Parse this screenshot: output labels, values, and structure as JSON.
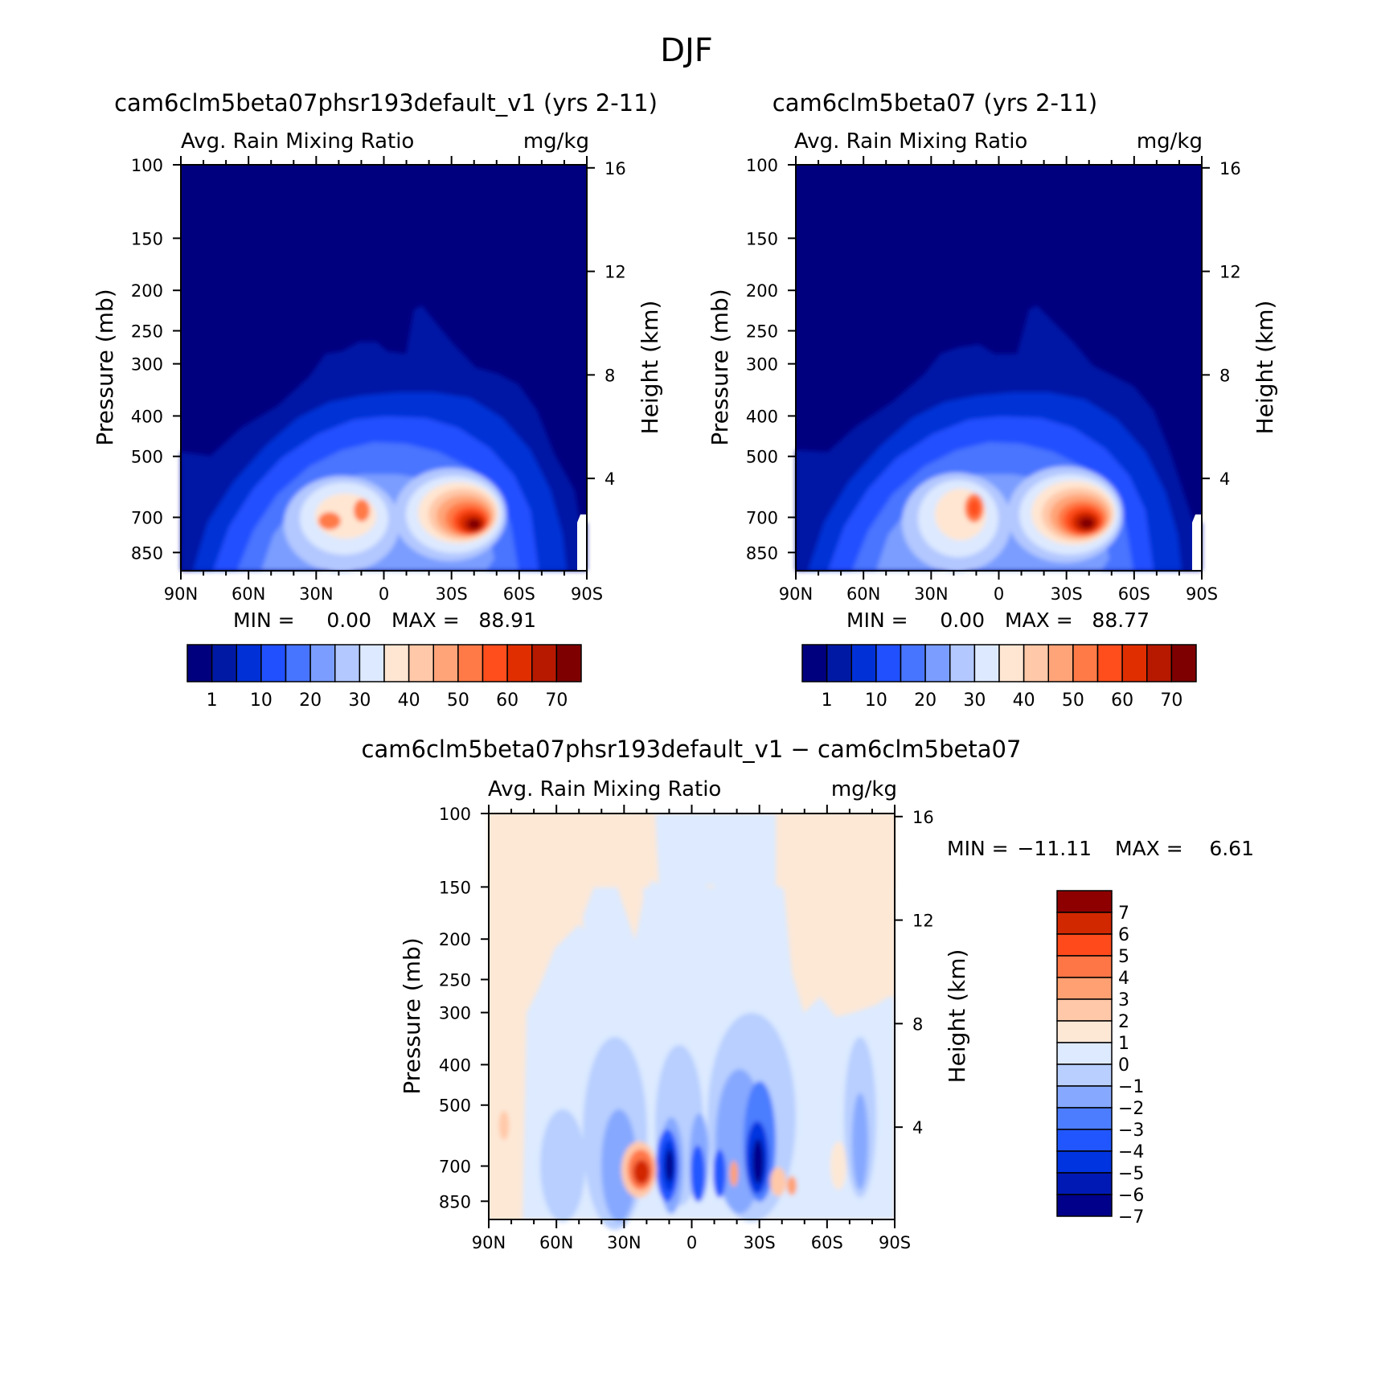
{
  "figure": {
    "title": "DJF"
  },
  "colors": {
    "abs_levels": [
      "#00007f",
      "#0019a5",
      "#0030d6",
      "#2150ff",
      "#4875ff",
      "#7a9dff",
      "#b3c8ff",
      "#dde9ff",
      "#ffe6d2",
      "#ffc8a8",
      "#ffa478",
      "#ff7a46",
      "#ff4e1c",
      "#e02e00",
      "#b61900",
      "#7f0000"
    ],
    "diff_levels": [
      "#00008a",
      "#0019b4",
      "#0034e0",
      "#2156ff",
      "#4c7dff",
      "#86a8ff",
      "#b8cfff",
      "#ddeaff",
      "#fde8d6",
      "#ffc8a8",
      "#ffa072",
      "#ff7646",
      "#ff4b1c",
      "#d12800",
      "#8e0000"
    ]
  },
  "chart_data": [
    {
      "type": "contour",
      "title": "cam6clm5beta07phsr193default_v1 (yrs 2-11)",
      "subtitle_left": "Avg. Rain Mixing Ratio",
      "subtitle_right": "mg/kg",
      "xlabel": "",
      "ylabel": "Pressure (mb)",
      "ylabel_right": "Height (km)",
      "x_ticks": [
        "90N",
        "60N",
        "30N",
        "0",
        "30S",
        "60S",
        "90S"
      ],
      "y_ticks": [
        100,
        150,
        200,
        250,
        300,
        400,
        500,
        700,
        850
      ],
      "y_right_ticks": [
        16,
        12,
        8,
        4
      ],
      "stats": {
        "min_label": "MIN =",
        "min": "0.00",
        "max_label": "MAX =",
        "max": "88.91"
      },
      "colorbar_labels": [
        "1",
        "10",
        "20",
        "30",
        "40",
        "50",
        "60",
        "70"
      ],
      "features": [
        {
          "lat": 25,
          "p": 700,
          "value": 55
        },
        {
          "lat": 21,
          "p": 690,
          "value": 45
        },
        {
          "lat": -37,
          "p": 710,
          "value": 88.91
        }
      ]
    },
    {
      "type": "contour",
      "title": "cam6clm5beta07 (yrs 2-11)",
      "subtitle_left": "Avg. Rain Mixing Ratio",
      "subtitle_right": "mg/kg",
      "xlabel": "",
      "ylabel": "Pressure (mb)",
      "ylabel_right": "Height (km)",
      "x_ticks": [
        "90N",
        "60N",
        "30N",
        "0",
        "30S",
        "60S",
        "90S"
      ],
      "y_ticks": [
        100,
        150,
        200,
        250,
        300,
        400,
        500,
        700,
        850
      ],
      "y_right_ticks": [
        16,
        12,
        8,
        4
      ],
      "stats": {
        "min_label": "MIN =",
        "min": "0.00",
        "max_label": "MAX =",
        "max": "88.77"
      },
      "colorbar_labels": [
        "1",
        "10",
        "20",
        "30",
        "40",
        "50",
        "60",
        "70"
      ],
      "features": [
        {
          "lat": 12,
          "p": 680,
          "value": 60
        },
        {
          "lat": -36,
          "p": 700,
          "value": 88.77
        }
      ]
    },
    {
      "type": "contour",
      "title": "cam6clm5beta07phsr193default_v1 − cam6clm5beta07",
      "subtitle_left": "Avg. Rain Mixing Ratio",
      "subtitle_right": "mg/kg",
      "xlabel": "",
      "ylabel": "Pressure (mb)",
      "ylabel_right": "Height (km)",
      "x_ticks": [
        "90N",
        "60N",
        "30N",
        "0",
        "30S",
        "60S",
        "90S"
      ],
      "y_ticks": [
        100,
        150,
        200,
        250,
        300,
        400,
        500,
        700,
        850
      ],
      "y_right_ticks": [
        16,
        12,
        8,
        4
      ],
      "stats": {
        "min_label": "MIN =",
        "min": "−11.11",
        "max_label": "MAX =",
        "max": "6.61"
      },
      "colorbar_labels": [
        "7",
        "6",
        "5",
        "4",
        "3",
        "2",
        "1",
        "0",
        "−1",
        "−2",
        "−3",
        "−4",
        "−5",
        "−6",
        "−7"
      ],
      "features": [
        {
          "lat": 25,
          "p": 700,
          "value": 6.61
        },
        {
          "lat": 13,
          "p": 700,
          "value": -11.11
        },
        {
          "lat": -28,
          "p": 680,
          "value": -9
        }
      ]
    }
  ]
}
